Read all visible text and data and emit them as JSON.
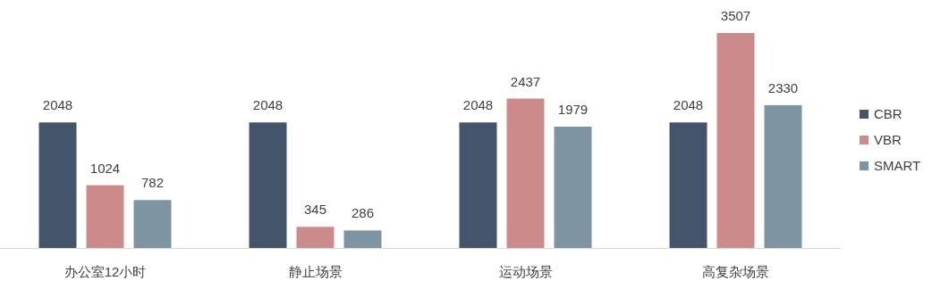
{
  "chart_data": {
    "type": "bar",
    "categories": [
      "办公室12小时",
      "静止场景",
      "运动场景",
      "高复杂场景"
    ],
    "series": [
      {
        "name": "CBR",
        "color": "#44546a",
        "values": [
          2048,
          2048,
          2048,
          2048
        ]
      },
      {
        "name": "VBR",
        "color": "#cd8a8a",
        "values": [
          1024,
          345,
          2437,
          3507
        ]
      },
      {
        "name": "SMART",
        "color": "#7d95a3",
        "values": [
          782,
          286,
          1979,
          2330
        ]
      }
    ],
    "data_labels": true,
    "legend": "right"
  }
}
